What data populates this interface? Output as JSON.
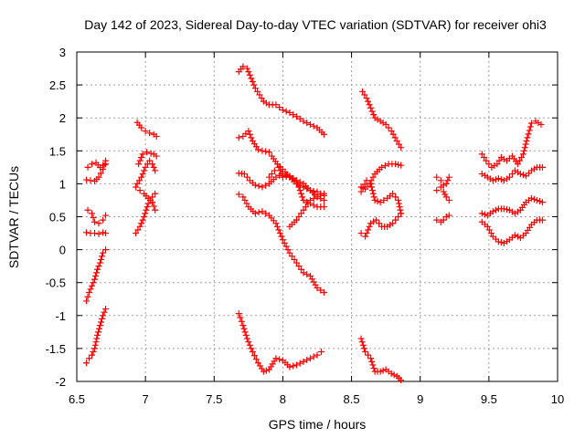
{
  "chart_data": {
    "type": "scatter",
    "title": "Day 142 of 2023, Sidereal Day-to-day VTEC variation (SDTVAR) for receiver ohi3",
    "xlabel": "GPS time / hours",
    "ylabel": "SDTVAR / TECUs",
    "xlim": [
      6.5,
      10
    ],
    "ylim": [
      -2,
      3
    ],
    "xticks": [
      "6.5",
      "7",
      "7.5",
      "8",
      "8.5",
      "9",
      "9.5",
      "10"
    ],
    "yticks": [
      "-2",
      "-1.5",
      "-1",
      "-0.5",
      "0",
      "0.5",
      "1",
      "1.5",
      "2",
      "2.5",
      "3"
    ],
    "grid": true,
    "marker": "+",
    "marker_color": "#ff0000",
    "series": [
      {
        "name": "s1",
        "points": [
          [
            6.57,
            1.06
          ],
          [
            6.6,
            1.05
          ],
          [
            6.63,
            1.04
          ],
          [
            6.66,
            1.1
          ],
          [
            6.69,
            1.22
          ],
          [
            6.71,
            1.35
          ]
        ]
      },
      {
        "name": "s2",
        "points": [
          [
            6.58,
            1.25
          ],
          [
            6.61,
            1.3
          ],
          [
            6.64,
            1.32
          ],
          [
            6.67,
            1.25
          ],
          [
            6.69,
            1.28
          ],
          [
            6.71,
            1.3
          ]
        ]
      },
      {
        "name": "s3",
        "points": [
          [
            6.58,
            0.6
          ],
          [
            6.61,
            0.55
          ],
          [
            6.63,
            0.42
          ],
          [
            6.66,
            0.4
          ],
          [
            6.69,
            0.45
          ],
          [
            6.71,
            0.52
          ]
        ]
      },
      {
        "name": "s4",
        "points": [
          [
            6.57,
            0.26
          ],
          [
            6.6,
            0.25
          ],
          [
            6.63,
            0.25
          ],
          [
            6.66,
            0.24
          ],
          [
            6.69,
            0.26
          ],
          [
            6.71,
            0.25
          ]
        ]
      },
      {
        "name": "s5",
        "points": [
          [
            6.57,
            -0.78
          ],
          [
            6.59,
            -0.65
          ],
          [
            6.61,
            -0.55
          ],
          [
            6.63,
            -0.45
          ],
          [
            6.65,
            -0.3
          ],
          [
            6.67,
            -0.2
          ],
          [
            6.69,
            -0.05
          ],
          [
            6.71,
            0.0
          ]
        ]
      },
      {
        "name": "s6",
        "points": [
          [
            6.57,
            -1.72
          ],
          [
            6.59,
            -1.65
          ],
          [
            6.61,
            -1.6
          ],
          [
            6.63,
            -1.5
          ],
          [
            6.65,
            -1.3
          ],
          [
            6.67,
            -1.15
          ],
          [
            6.69,
            -1.0
          ],
          [
            6.71,
            -0.9
          ]
        ]
      },
      {
        "name": "s7",
        "points": [
          [
            6.94,
            1.93
          ],
          [
            6.97,
            1.85
          ],
          [
            7.0,
            1.8
          ],
          [
            7.03,
            1.77
          ],
          [
            7.06,
            1.75
          ],
          [
            7.08,
            1.72
          ]
        ]
      },
      {
        "name": "s8",
        "points": [
          [
            6.95,
            1.3
          ],
          [
            6.98,
            1.45
          ],
          [
            7.01,
            1.48
          ],
          [
            7.04,
            1.46
          ],
          [
            7.06,
            1.45
          ],
          [
            7.08,
            1.42
          ]
        ]
      },
      {
        "name": "s9",
        "points": [
          [
            6.94,
            1.0
          ],
          [
            6.97,
            1.1
          ],
          [
            7.0,
            1.25
          ],
          [
            7.03,
            1.35
          ],
          [
            7.05,
            1.3
          ],
          [
            7.07,
            1.2
          ]
        ]
      },
      {
        "name": "s10",
        "points": [
          [
            6.93,
            0.95
          ],
          [
            6.96,
            0.9
          ],
          [
            6.99,
            0.85
          ],
          [
            7.02,
            0.78
          ],
          [
            7.05,
            0.72
          ],
          [
            7.07,
            0.6
          ]
        ]
      },
      {
        "name": "s11",
        "points": [
          [
            6.93,
            0.25
          ],
          [
            6.96,
            0.35
          ],
          [
            6.99,
            0.5
          ],
          [
            7.02,
            0.7
          ],
          [
            7.05,
            0.8
          ],
          [
            7.07,
            0.85
          ]
        ]
      },
      {
        "name": "s12",
        "points": [
          [
            7.68,
            2.7
          ],
          [
            7.71,
            2.78
          ],
          [
            7.74,
            2.75
          ],
          [
            7.77,
            2.6
          ],
          [
            7.8,
            2.45
          ],
          [
            7.83,
            2.35
          ],
          [
            7.86,
            2.25
          ],
          [
            7.9,
            2.2
          ],
          [
            7.95,
            2.2
          ],
          [
            8.0,
            2.12
          ],
          [
            8.05,
            2.08
          ],
          [
            8.1,
            2.02
          ],
          [
            8.15,
            1.95
          ],
          [
            8.2,
            1.9
          ],
          [
            8.25,
            1.85
          ],
          [
            8.3,
            1.75
          ]
        ]
      },
      {
        "name": "s13",
        "points": [
          [
            7.68,
            1.7
          ],
          [
            7.71,
            1.72
          ],
          [
            7.75,
            1.8
          ],
          [
            7.78,
            1.65
          ],
          [
            7.82,
            1.52
          ],
          [
            7.85,
            1.5
          ],
          [
            7.9,
            1.48
          ],
          [
            7.92,
            1.42
          ],
          [
            7.96,
            1.3
          ],
          [
            8.0,
            1.22
          ],
          [
            8.05,
            1.1
          ],
          [
            8.1,
            1.05
          ],
          [
            8.15,
            1.0
          ],
          [
            8.2,
            0.9
          ],
          [
            8.25,
            0.8
          ],
          [
            8.3,
            0.75
          ]
        ]
      },
      {
        "name": "s14",
        "points": [
          [
            7.68,
            1.16
          ],
          [
            7.72,
            1.15
          ],
          [
            7.76,
            1.05
          ],
          [
            7.8,
            0.98
          ],
          [
            7.85,
            0.95
          ],
          [
            7.9,
            1.0
          ],
          [
            7.95,
            1.1
          ],
          [
            8.0,
            1.15
          ],
          [
            8.05,
            1.1
          ],
          [
            8.1,
            1.0
          ],
          [
            8.15,
            0.95
          ],
          [
            8.2,
            0.9
          ],
          [
            8.25,
            0.88
          ],
          [
            8.3,
            0.82
          ]
        ]
      },
      {
        "name": "s15",
        "points": [
          [
            7.9,
            1.1
          ],
          [
            7.94,
            1.2
          ],
          [
            7.97,
            1.25
          ],
          [
            8.0,
            1.1
          ],
          [
            8.05,
            1.12
          ],
          [
            8.1,
            1.05
          ],
          [
            8.15,
            0.75
          ],
          [
            8.2,
            0.7
          ],
          [
            8.25,
            0.65
          ],
          [
            8.3,
            0.65
          ]
        ]
      },
      {
        "name": "s16",
        "points": [
          [
            7.68,
            0.84
          ],
          [
            7.71,
            0.8
          ],
          [
            7.75,
            0.65
          ],
          [
            7.8,
            0.55
          ],
          [
            7.85,
            0.58
          ],
          [
            7.9,
            0.52
          ],
          [
            7.95,
            0.4
          ],
          [
            8.0,
            0.15
          ],
          [
            8.05,
            -0.05
          ],
          [
            8.1,
            -0.2
          ],
          [
            8.15,
            -0.35
          ],
          [
            8.2,
            -0.4
          ],
          [
            8.25,
            -0.58
          ],
          [
            8.3,
            -0.65
          ]
        ]
      },
      {
        "name": "s17",
        "points": [
          [
            8.05,
            0.35
          ],
          [
            8.1,
            0.45
          ],
          [
            8.15,
            0.6
          ],
          [
            8.2,
            0.75
          ],
          [
            8.25,
            0.8
          ],
          [
            8.3,
            0.85
          ]
        ]
      },
      {
        "name": "s18",
        "points": [
          [
            7.68,
            -0.97
          ],
          [
            7.71,
            -1.15
          ],
          [
            7.74,
            -1.35
          ],
          [
            7.78,
            -1.55
          ],
          [
            7.82,
            -1.72
          ],
          [
            7.86,
            -1.85
          ],
          [
            7.9,
            -1.82
          ],
          [
            7.95,
            -1.65
          ],
          [
            8.0,
            -1.68
          ],
          [
            8.05,
            -1.78
          ],
          [
            8.1,
            -1.75
          ],
          [
            8.15,
            -1.7
          ],
          [
            8.2,
            -1.65
          ],
          [
            8.25,
            -1.6
          ],
          [
            8.28,
            -1.55
          ]
        ]
      },
      {
        "name": "s19",
        "points": [
          [
            8.58,
            2.4
          ],
          [
            8.61,
            2.3
          ],
          [
            8.64,
            2.15
          ],
          [
            8.67,
            2.0
          ],
          [
            8.71,
            1.95
          ],
          [
            8.75,
            1.9
          ],
          [
            8.79,
            1.8
          ],
          [
            8.83,
            1.65
          ],
          [
            8.86,
            1.55
          ]
        ]
      },
      {
        "name": "s20",
        "points": [
          [
            8.57,
            0.95
          ],
          [
            8.6,
            0.92
          ],
          [
            8.63,
            1.0
          ],
          [
            8.67,
            1.15
          ],
          [
            8.72,
            1.25
          ],
          [
            8.77,
            1.3
          ],
          [
            8.82,
            1.3
          ],
          [
            8.86,
            1.28
          ]
        ]
      },
      {
        "name": "s21",
        "points": [
          [
            8.57,
            0.88
          ],
          [
            8.61,
            1.05
          ],
          [
            8.64,
            1.0
          ],
          [
            8.67,
            0.75
          ],
          [
            8.71,
            0.72
          ],
          [
            8.76,
            0.78
          ],
          [
            8.8,
            0.85
          ],
          [
            8.84,
            0.75
          ],
          [
            8.86,
            0.55
          ]
        ]
      },
      {
        "name": "s22",
        "points": [
          [
            8.57,
            0.25
          ],
          [
            8.6,
            0.2
          ],
          [
            8.64,
            0.4
          ],
          [
            8.68,
            0.45
          ],
          [
            8.72,
            0.35
          ],
          [
            8.76,
            0.35
          ],
          [
            8.8,
            0.4
          ],
          [
            8.84,
            0.5
          ],
          [
            8.86,
            0.55
          ]
        ]
      },
      {
        "name": "s23",
        "points": [
          [
            8.57,
            -1.35
          ],
          [
            8.6,
            -1.55
          ],
          [
            8.64,
            -1.65
          ],
          [
            8.67,
            -1.85
          ],
          [
            8.71,
            -1.85
          ],
          [
            8.75,
            -1.82
          ],
          [
            8.79,
            -1.88
          ],
          [
            8.83,
            -1.92
          ],
          [
            8.86,
            -1.98
          ]
        ]
      },
      {
        "name": "s24",
        "points": [
          [
            9.12,
            1.1
          ],
          [
            9.15,
            1.05
          ],
          [
            9.17,
            0.98
          ],
          [
            9.19,
            1.0
          ],
          [
            9.21,
            1.1
          ]
        ]
      },
      {
        "name": "s25",
        "points": [
          [
            9.12,
            0.9
          ],
          [
            9.15,
            0.95
          ],
          [
            9.17,
            0.88
          ],
          [
            9.19,
            0.8
          ],
          [
            9.21,
            0.75
          ]
        ]
      },
      {
        "name": "s26",
        "points": [
          [
            9.12,
            0.45
          ],
          [
            9.15,
            0.42
          ],
          [
            9.17,
            0.45
          ],
          [
            9.19,
            0.5
          ],
          [
            9.21,
            0.52
          ]
        ]
      },
      {
        "name": "s27",
        "points": [
          [
            9.45,
            1.45
          ],
          [
            9.48,
            1.35
          ],
          [
            9.52,
            1.25
          ],
          [
            9.56,
            1.3
          ],
          [
            9.59,
            1.4
          ],
          [
            9.63,
            1.35
          ],
          [
            9.67,
            1.42
          ],
          [
            9.71,
            1.3
          ],
          [
            9.75,
            1.45
          ],
          [
            9.78,
            1.7
          ],
          [
            9.81,
            1.92
          ],
          [
            9.84,
            1.95
          ],
          [
            9.88,
            1.9
          ]
        ]
      },
      {
        "name": "s28",
        "points": [
          [
            9.45,
            1.15
          ],
          [
            9.49,
            1.1
          ],
          [
            9.53,
            1.05
          ],
          [
            9.57,
            1.08
          ],
          [
            9.61,
            1.05
          ],
          [
            9.65,
            1.1
          ],
          [
            9.69,
            1.2
          ],
          [
            9.73,
            1.15
          ],
          [
            9.77,
            1.12
          ],
          [
            9.81,
            1.2
          ],
          [
            9.85,
            1.25
          ],
          [
            9.89,
            1.25
          ]
        ]
      },
      {
        "name": "s29",
        "points": [
          [
            9.45,
            0.55
          ],
          [
            9.49,
            0.52
          ],
          [
            9.53,
            0.58
          ],
          [
            9.57,
            0.62
          ],
          [
            9.61,
            0.62
          ],
          [
            9.65,
            0.6
          ],
          [
            9.69,
            0.55
          ],
          [
            9.73,
            0.6
          ],
          [
            9.77,
            0.72
          ],
          [
            9.81,
            0.78
          ],
          [
            9.85,
            0.75
          ],
          [
            9.89,
            0.72
          ]
        ]
      },
      {
        "name": "s30",
        "points": [
          [
            9.45,
            0.42
          ],
          [
            9.49,
            0.35
          ],
          [
            9.53,
            0.2
          ],
          [
            9.57,
            0.12
          ],
          [
            9.61,
            0.1
          ],
          [
            9.65,
            0.15
          ],
          [
            9.69,
            0.22
          ],
          [
            9.73,
            0.18
          ],
          [
            9.77,
            0.25
          ],
          [
            9.81,
            0.38
          ],
          [
            9.85,
            0.45
          ],
          [
            9.89,
            0.45
          ]
        ]
      }
    ]
  }
}
